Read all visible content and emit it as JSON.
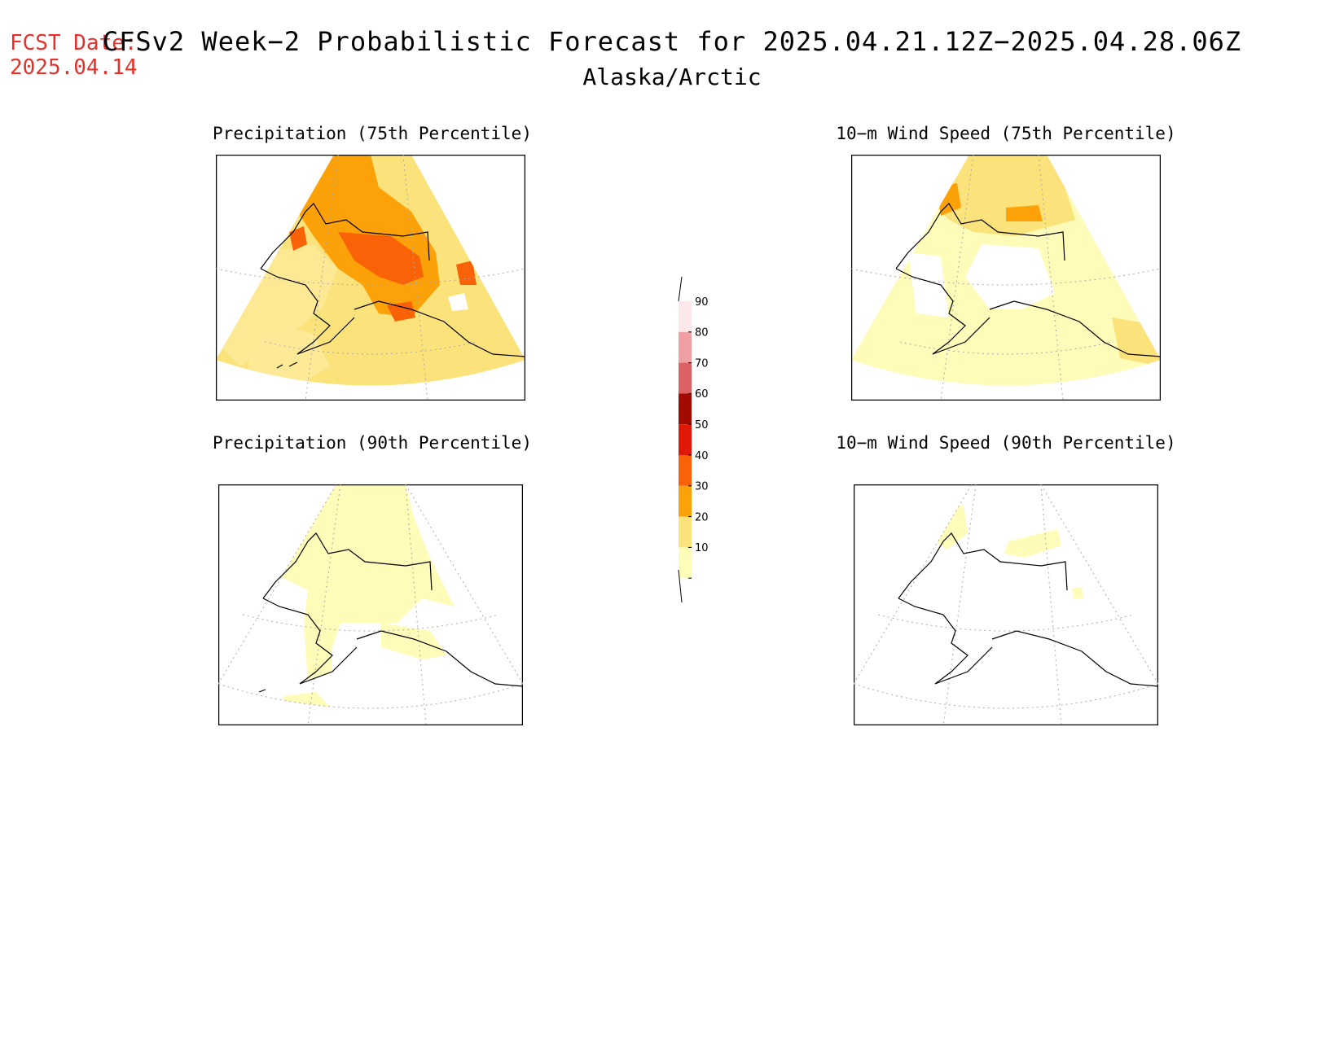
{
  "header": {
    "fcst_label": "FCST Date:",
    "fcst_date": "2025.04.14",
    "title": "CFSv2 Week−2 Probabilistic Forecast for 2025.04.21.12Z−2025.04.28.06Z",
    "region": "Alaska/Arctic"
  },
  "panels": {
    "p75": {
      "title": "Precipitation (75th Percentile)"
    },
    "p90": {
      "title": "Precipitation (90th Percentile)"
    },
    "w75": {
      "title": "10−m Wind Speed (75th Percentile)"
    },
    "w90": {
      "title": "10−m Wind Speed (90th Percentile)"
    }
  },
  "colorbar": {
    "ticks": [
      "90",
      "80",
      "70",
      "60",
      "50",
      "40",
      "30",
      "20",
      "10"
    ],
    "colors": [
      "#fce8ea",
      "#f0a0a4",
      "#dc6064",
      "#a00a00",
      "#e01808",
      "#fa6208",
      "#fca208",
      "#fce27a",
      "#fefcb8"
    ]
  },
  "palette": {
    "lightest": "#fefcb8",
    "light": "#fce27a",
    "medium": "#fca208",
    "dark": "#fa6208",
    "fcst_text": "#e8302a"
  }
}
